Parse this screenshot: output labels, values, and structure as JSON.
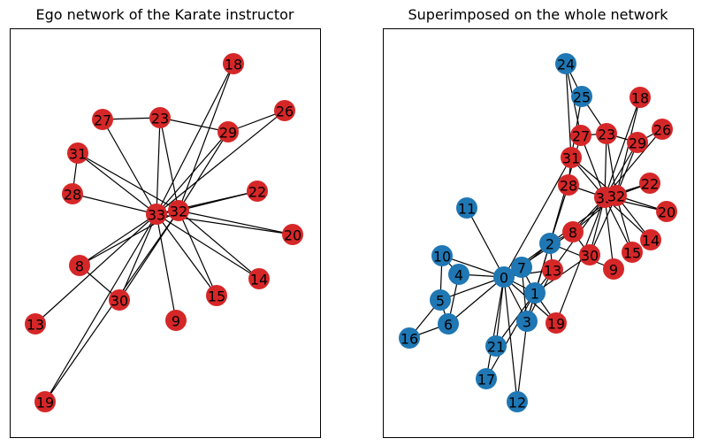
{
  "figure": {
    "left_title": "Ego network of the Karate instructor",
    "right_title": "Superimposed on the whole network"
  },
  "colors": {
    "ego_node": "#d62728",
    "other_node": "#1f77b4",
    "edge": "#000000",
    "frame": "#000000"
  },
  "graphs": {
    "ego": {
      "nodes": [
        "18",
        "27",
        "23",
        "29",
        "26",
        "31",
        "28",
        "22",
        "33",
        "32",
        "20",
        "8",
        "14",
        "15",
        "30",
        "9",
        "13",
        "19"
      ],
      "edges": [
        [
          "33",
          "18"
        ],
        [
          "32",
          "18"
        ],
        [
          "33",
          "23"
        ],
        [
          "32",
          "23"
        ],
        [
          "23",
          "27"
        ],
        [
          "23",
          "29"
        ],
        [
          "33",
          "29"
        ],
        [
          "32",
          "29"
        ],
        [
          "33",
          "26"
        ],
        [
          "29",
          "26"
        ],
        [
          "33",
          "31"
        ],
        [
          "32",
          "31"
        ],
        [
          "31",
          "28"
        ],
        [
          "33",
          "28"
        ],
        [
          "33",
          "22"
        ],
        [
          "32",
          "22"
        ],
        [
          "33",
          "20"
        ],
        [
          "32",
          "20"
        ],
        [
          "33",
          "8"
        ],
        [
          "32",
          "8"
        ],
        [
          "33",
          "14"
        ],
        [
          "32",
          "14"
        ],
        [
          "33",
          "15"
        ],
        [
          "32",
          "15"
        ],
        [
          "33",
          "30"
        ],
        [
          "32",
          "30"
        ],
        [
          "8",
          "30"
        ],
        [
          "33",
          "9"
        ],
        [
          "33",
          "13"
        ],
        [
          "33",
          "19"
        ],
        [
          "32",
          "19"
        ],
        [
          "33",
          "32"
        ],
        [
          "33",
          "27"
        ]
      ]
    },
    "whole": {
      "ego_nodes": [
        "18",
        "23",
        "29",
        "26",
        "27",
        "31",
        "28",
        "33",
        "32",
        "22",
        "20",
        "8",
        "14",
        "15",
        "30",
        "9",
        "13",
        "19"
      ],
      "other_nodes": [
        "24",
        "25",
        "11",
        "2",
        "10",
        "4",
        "0",
        "7",
        "1",
        "5",
        "6",
        "16",
        "3",
        "21",
        "17",
        "12"
      ],
      "edges": [
        [
          "0",
          "1"
        ],
        [
          "0",
          "2"
        ],
        [
          "0",
          "3"
        ],
        [
          "0",
          "4"
        ],
        [
          "0",
          "5"
        ],
        [
          "0",
          "6"
        ],
        [
          "0",
          "7"
        ],
        [
          "0",
          "8"
        ],
        [
          "0",
          "10"
        ],
        [
          "0",
          "11"
        ],
        [
          "0",
          "12"
        ],
        [
          "0",
          "13"
        ],
        [
          "0",
          "17"
        ],
        [
          "0",
          "19"
        ],
        [
          "0",
          "21"
        ],
        [
          "0",
          "31"
        ],
        [
          "1",
          "2"
        ],
        [
          "1",
          "3"
        ],
        [
          "1",
          "7"
        ],
        [
          "1",
          "13"
        ],
        [
          "1",
          "17"
        ],
        [
          "1",
          "19"
        ],
        [
          "1",
          "21"
        ],
        [
          "1",
          "30"
        ],
        [
          "2",
          "3"
        ],
        [
          "2",
          "7"
        ],
        [
          "2",
          "8"
        ],
        [
          "2",
          "9"
        ],
        [
          "2",
          "13"
        ],
        [
          "2",
          "27"
        ],
        [
          "2",
          "28"
        ],
        [
          "2",
          "32"
        ],
        [
          "3",
          "7"
        ],
        [
          "3",
          "12"
        ],
        [
          "3",
          "13"
        ],
        [
          "4",
          "6"
        ],
        [
          "4",
          "10"
        ],
        [
          "5",
          "6"
        ],
        [
          "5",
          "10"
        ],
        [
          "5",
          "16"
        ],
        [
          "6",
          "16"
        ],
        [
          "8",
          "30"
        ],
        [
          "8",
          "32"
        ],
        [
          "8",
          "33"
        ],
        [
          "9",
          "33"
        ],
        [
          "13",
          "33"
        ],
        [
          "14",
          "32"
        ],
        [
          "14",
          "33"
        ],
        [
          "15",
          "32"
        ],
        [
          "15",
          "33"
        ],
        [
          "18",
          "32"
        ],
        [
          "18",
          "33"
        ],
        [
          "19",
          "33"
        ],
        [
          "20",
          "32"
        ],
        [
          "20",
          "33"
        ],
        [
          "22",
          "32"
        ],
        [
          "22",
          "33"
        ],
        [
          "23",
          "25"
        ],
        [
          "23",
          "27"
        ],
        [
          "23",
          "29"
        ],
        [
          "23",
          "32"
        ],
        [
          "23",
          "33"
        ],
        [
          "24",
          "25"
        ],
        [
          "24",
          "27"
        ],
        [
          "24",
          "31"
        ],
        [
          "25",
          "31"
        ],
        [
          "26",
          "29"
        ],
        [
          "26",
          "33"
        ],
        [
          "27",
          "33"
        ],
        [
          "28",
          "31"
        ],
        [
          "28",
          "33"
        ],
        [
          "29",
          "32"
        ],
        [
          "29",
          "33"
        ],
        [
          "30",
          "32"
        ],
        [
          "30",
          "33"
        ],
        [
          "31",
          "32"
        ],
        [
          "31",
          "33"
        ],
        [
          "32",
          "33"
        ]
      ]
    }
  }
}
